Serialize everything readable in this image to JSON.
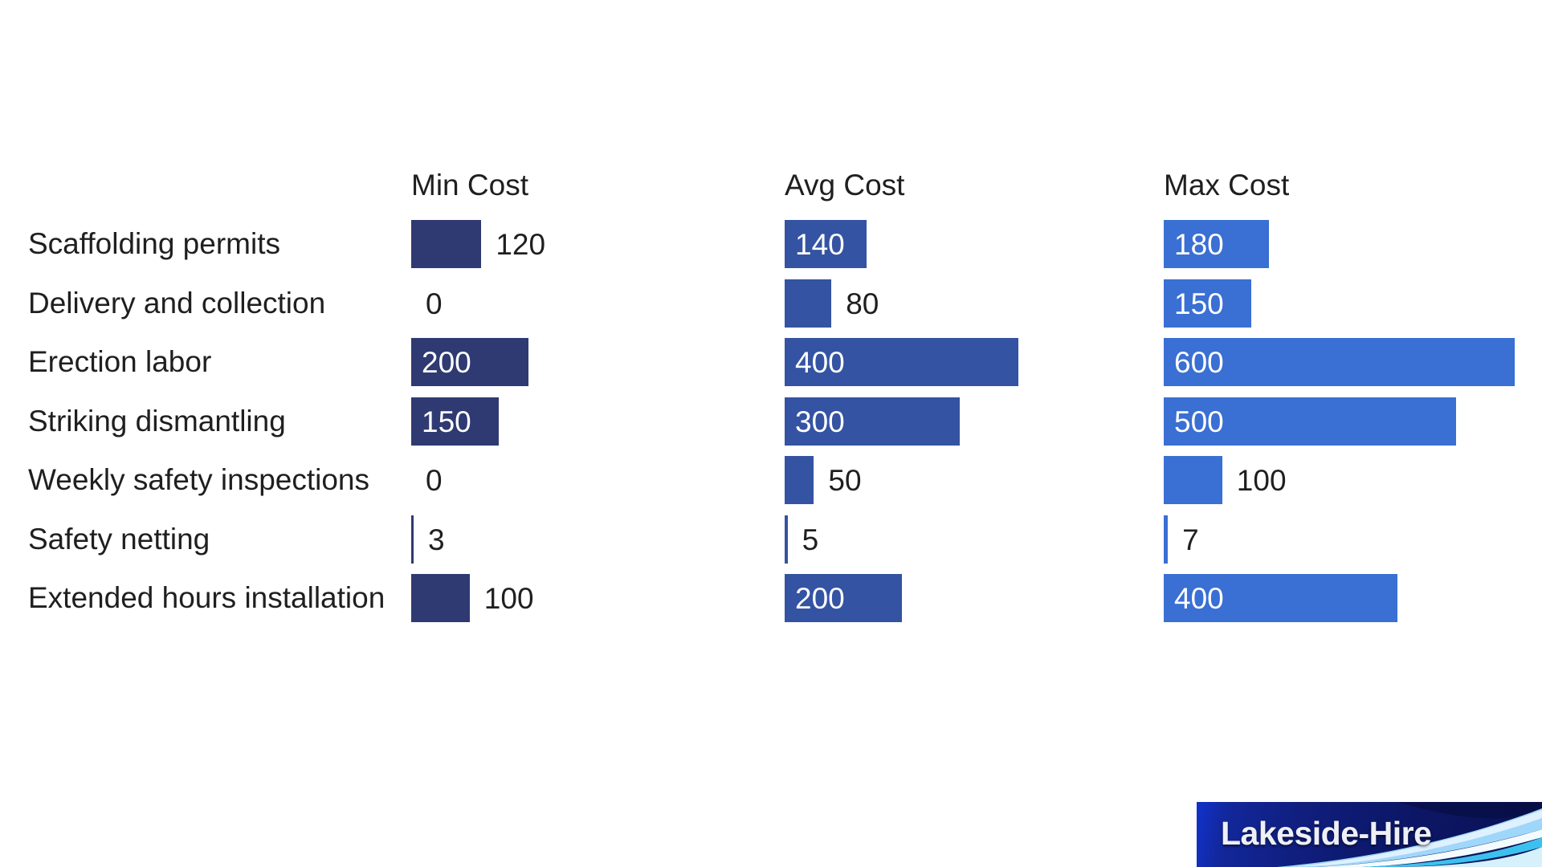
{
  "chart_data": {
    "type": "bar",
    "orientation": "horizontal",
    "categories": [
      "Scaffolding permits",
      "Delivery and collection",
      "Erection labor",
      "Striking dismantling",
      "Weekly safety inspections",
      "Safety netting",
      "Extended hours installation"
    ],
    "series": [
      {
        "name": "Min Cost",
        "values": [
          120,
          0,
          200,
          150,
          0,
          3,
          100
        ],
        "color": "#2f3a72"
      },
      {
        "name": "Avg Cost",
        "values": [
          140,
          80,
          400,
          300,
          50,
          5,
          200
        ],
        "color": "#3453a2"
      },
      {
        "name": "Max Cost",
        "values": [
          180,
          150,
          600,
          500,
          100,
          7,
          400
        ],
        "color": "#3a6fd3"
      }
    ],
    "value_labels": true,
    "xlim": [
      0,
      600
    ],
    "grid": false,
    "legend_position": "column-headers"
  },
  "branding": {
    "logo_text": "Lakeside-Hire"
  },
  "colors": {
    "background": "#ffffff",
    "text": "#1f1f1f",
    "value_label_inside": "#ffffff",
    "logo_bg_bright": "#1133cc",
    "logo_bg_dark": "#0a1152",
    "logo_swoosh_lightblue": "#9fd7fa",
    "logo_swoosh_white": "#f4fbff",
    "logo_swoosh_cyan": "#3cc1ef"
  }
}
